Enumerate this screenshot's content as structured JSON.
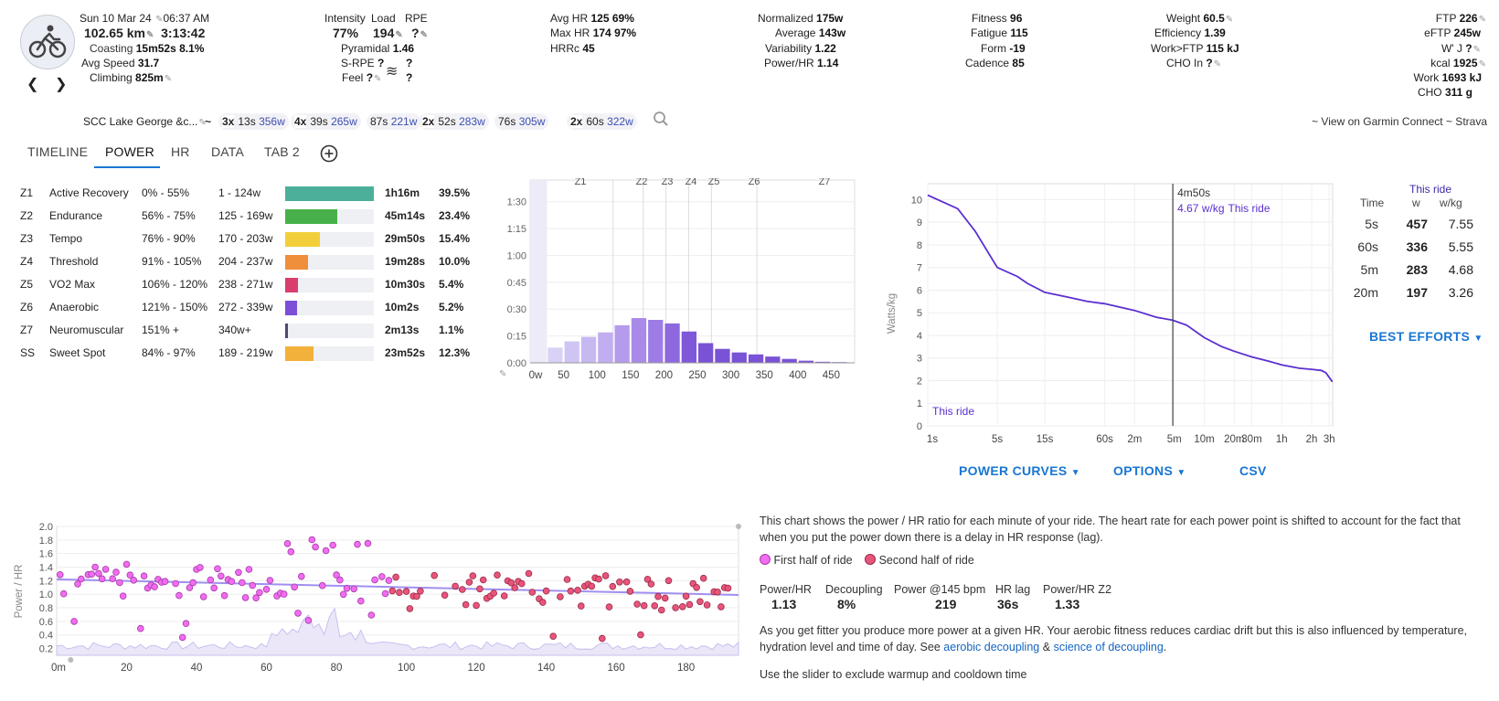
{
  "activity": {
    "date": "Sun 10 Mar 24",
    "time": "06:37 AM",
    "distance": "102.65 km",
    "duration": "3:13:42",
    "coasting_label": "Coasting",
    "coasting_time": "15m52s",
    "coasting_pct": "8.1%",
    "avg_speed_label": "Avg Speed",
    "avg_speed": "31.7",
    "climbing_label": "Climbing",
    "climbing": "825m",
    "name": "SCC Lake George &c...",
    "icon": "cycling-icon"
  },
  "intensity": {
    "intensity_label": "Intensity",
    "intensity": "77%",
    "load_label": "Load",
    "load": "194",
    "rpe_label": "RPE",
    "rpe": "?",
    "pyramidal_label": "Pyramidal",
    "pyramidal": "1.46",
    "srpe_label": "S-RPE",
    "srpe": "?",
    "feel_label": "Feel",
    "feel": "?",
    "wind": "?",
    "wind2": "?"
  },
  "hr": {
    "avg_label": "Avg HR",
    "avg": "125",
    "avg_pct": "69%",
    "max_label": "Max HR",
    "max": "174",
    "max_pct": "97%",
    "hrrc_label": "HRRc",
    "hrrc": "45"
  },
  "power": {
    "normalized_label": "Normalized",
    "normalized": "175w",
    "average_label": "Average",
    "average": "143w",
    "variability_label": "Variability",
    "variability": "1.22",
    "powerhr_label": "Power/HR",
    "powerhr": "1.14"
  },
  "fitness": {
    "fitness_label": "Fitness",
    "fitness": "96",
    "fatigue_label": "Fatigue",
    "fatigue": "115",
    "form_label": "Form",
    "form": "-19",
    "cadence_label": "Cadence",
    "cadence": "85"
  },
  "body": {
    "weight_label": "Weight",
    "weight": "60.5",
    "efficiency_label": "Efficiency",
    "efficiency": "1.39",
    "workftp_label": "Work>FTP",
    "workftp": "115 kJ",
    "cho_in_label": "CHO In",
    "cho_in": "?"
  },
  "ftp": {
    "ftp_label": "FTP",
    "ftp": "226",
    "eftp_label": "eFTP",
    "eftp": "245w",
    "wj_label": "W' J",
    "wj": "?",
    "kcal_label": "kcal",
    "kcal": "1925",
    "work_label": "Work",
    "work": "1693 kJ",
    "cho_label": "CHO",
    "cho": "311 g"
  },
  "intervals": [
    {
      "count": "3x",
      "dur": "13s",
      "w": "356w"
    },
    {
      "count": "4x",
      "dur": "39s",
      "w": "265w"
    },
    {
      "count": "",
      "dur": "87s",
      "w": "221w"
    },
    {
      "count": "2x",
      "dur": "52s",
      "w": "283w"
    },
    {
      "count": "",
      "dur": "76s",
      "w": "305w"
    },
    {
      "count": "2x",
      "dur": "60s",
      "w": "322w"
    }
  ],
  "tilde": "~",
  "external_links": {
    "garmin": "~ View on Garmin Connect",
    "strava": "~ Strava"
  },
  "tabs": [
    "TIMELINE",
    "POWER",
    "HR",
    "DATA",
    "TAB 2"
  ],
  "zones": [
    {
      "id": "Z1",
      "name": "Active Recovery",
      "pct": "0% - 55%",
      "watts": "1 - 124w",
      "time": "1h16m",
      "share": "39.5%",
      "frac": 1.0,
      "color": "#4caf9a"
    },
    {
      "id": "Z2",
      "name": "Endurance",
      "pct": "56% - 75%",
      "watts": "125 - 169w",
      "time": "45m14s",
      "share": "23.4%",
      "frac": 0.59,
      "color": "#48b04b"
    },
    {
      "id": "Z3",
      "name": "Tempo",
      "pct": "76% - 90%",
      "watts": "170 - 203w",
      "time": "29m50s",
      "share": "15.4%",
      "frac": 0.39,
      "color": "#f2cf3a"
    },
    {
      "id": "Z4",
      "name": "Threshold",
      "pct": "91% - 105%",
      "watts": "204 - 237w",
      "time": "19m28s",
      "share": "10.0%",
      "frac": 0.26,
      "color": "#f08f3b"
    },
    {
      "id": "Z5",
      "name": "VO2 Max",
      "pct": "106% - 120%",
      "watts": "238 - 271w",
      "time": "10m30s",
      "share": "5.4%",
      "frac": 0.14,
      "color": "#d83f6c"
    },
    {
      "id": "Z6",
      "name": "Anaerobic",
      "pct": "121% - 150%",
      "watts": "272 - 339w",
      "time": "10m2s",
      "share": "5.2%",
      "frac": 0.13,
      "color": "#7b4fd6"
    },
    {
      "id": "Z7",
      "name": "Neuromuscular",
      "pct": "151% +",
      "watts": "340w+",
      "time": "2m13s",
      "share": "1.1%",
      "frac": 0.03,
      "color": "#4a4a72"
    },
    {
      "id": "SS",
      "name": "Sweet Spot",
      "pct": "84% - 97%",
      "watts": "189 - 219w",
      "time": "23m52s",
      "share": "12.3%",
      "frac": 0.32,
      "color": "#f2b13a"
    }
  ],
  "chart_data": [
    {
      "type": "bar",
      "x": [
        0,
        25,
        50,
        75,
        100,
        125,
        150,
        175,
        200,
        225,
        250,
        275,
        300,
        325,
        350,
        375,
        400,
        425,
        450
      ],
      "values_minutes": [
        0.5,
        8.5,
        12,
        14.5,
        17,
        21,
        25,
        24,
        22,
        17.5,
        11,
        7.8,
        5.8,
        4.7,
        3.5,
        2.2,
        1.2,
        0.6,
        0.4
      ],
      "xticks": [
        "0w",
        "50",
        "100",
        "150",
        "200",
        "250",
        "300",
        "350",
        "400",
        "450"
      ],
      "yticks": [
        "0:00",
        "0:15",
        "0:30",
        "0:45",
        "1:00",
        "1:15",
        "1:30"
      ],
      "zone_labels": [
        "Z1",
        "Z2",
        "Z3",
        "Z4",
        "Z5",
        "Z6",
        "Z7"
      ],
      "zone_bounds_w": [
        124,
        169,
        203,
        237,
        271,
        339
      ]
    },
    {
      "type": "line",
      "ylabel": "Watts/kg",
      "yticks": [
        "0",
        "1",
        "2",
        "3",
        "4",
        "5",
        "6",
        "7",
        "8",
        "9",
        "10"
      ],
      "xticks": [
        "1s",
        "5s",
        "15s",
        "60s",
        "2m",
        "5m",
        "10m",
        "20m",
        "30m",
        "1h",
        "2h",
        "3h"
      ],
      "series_label": "This ride",
      "cursor_label": "4m50s",
      "cursor_value": "4.67 w/kg",
      "cursor_series": "This ride",
      "points": [
        [
          1,
          10.2
        ],
        [
          2,
          9.6
        ],
        [
          3,
          8.6
        ],
        [
          5,
          7.0
        ],
        [
          8,
          6.6
        ],
        [
          10,
          6.3
        ],
        [
          15,
          5.9
        ],
        [
          25,
          5.7
        ],
        [
          40,
          5.5
        ],
        [
          60,
          5.4
        ],
        [
          120,
          5.1
        ],
        [
          200,
          4.8
        ],
        [
          290,
          4.67
        ],
        [
          400,
          4.45
        ],
        [
          600,
          3.9
        ],
        [
          900,
          3.5
        ],
        [
          1200,
          3.3
        ],
        [
          1800,
          3.05
        ],
        [
          2700,
          2.85
        ],
        [
          3600,
          2.7
        ],
        [
          5400,
          2.55
        ],
        [
          7200,
          2.5
        ],
        [
          9000,
          2.45
        ],
        [
          10000,
          2.35
        ],
        [
          11622,
          1.95
        ]
      ]
    },
    {
      "type": "scatter",
      "ylabel": "Power / HR",
      "yticks": [
        "0.2",
        "0.4",
        "0.6",
        "0.8",
        "1.0",
        "1.2",
        "1.4",
        "1.6",
        "1.8",
        "2.0"
      ],
      "xticks": [
        "0m",
        "20",
        "40",
        "60",
        "80",
        "100",
        "120",
        "140",
        "160",
        "180"
      ],
      "trend": [
        [
          0,
          1.22
        ],
        [
          195,
          0.99
        ]
      ]
    }
  ],
  "best_efforts": {
    "col_time": "Time",
    "col_this": "This ride",
    "col_w": "w",
    "col_wkg": "w/kg",
    "rows": [
      {
        "t": "5s",
        "w": "457",
        "wkg": "7.55"
      },
      {
        "t": "60s",
        "w": "336",
        "wkg": "5.55"
      },
      {
        "t": "5m",
        "w": "283",
        "wkg": "4.68"
      },
      {
        "t": "20m",
        "w": "197",
        "wkg": "3.26"
      }
    ],
    "button": "BEST EFFORTS"
  },
  "curve_buttons": {
    "power_curves": "POWER CURVES",
    "options": "OPTIONS",
    "csv": "CSV"
  },
  "decoupling": {
    "intro": "This chart shows the power / HR ratio for each minute of your ride. The heart rate for each power point is shifted to account for the fact that when you put the power down there is a delay in HR response (lag).",
    "first_half": "First half of ride",
    "second_half": "Second half of ride",
    "stats": [
      {
        "label": "Power/HR",
        "value": "1.13"
      },
      {
        "label": "Decoupling",
        "value": "8%"
      },
      {
        "label": "Power @145 bpm",
        "value": "219"
      },
      {
        "label": "HR lag",
        "value": "36s"
      },
      {
        "label": "Power/HR Z2",
        "value": "1.33"
      }
    ],
    "note_pre": "As you get fitter you produce more power at a given HR. Your aerobic fitness reduces cardiac drift but this is also influenced by temperature, hydration level and time of day. See",
    "link1": "aerobic decoupling",
    "amp": "&",
    "link2": "science of decoupling",
    "period": ".",
    "slider_note": "Use the slider to exclude warmup and cooldown time"
  },
  "colors": {
    "accent": "#1976d2",
    "purple": "#6a3fd6",
    "first_half": "#f06cf0",
    "second_half": "#e8557a"
  }
}
